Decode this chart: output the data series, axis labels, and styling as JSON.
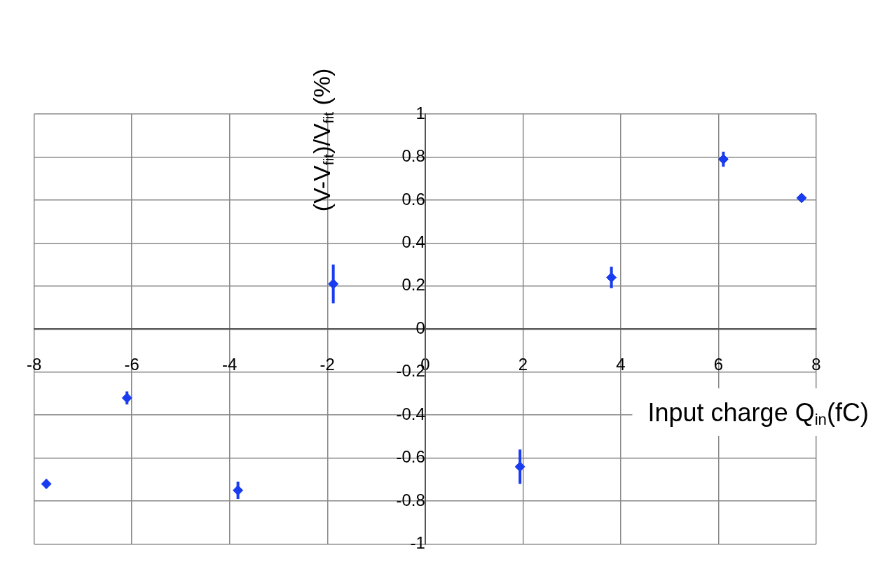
{
  "chart_data": {
    "type": "scatter",
    "xlabel": "Input charge Q$_{in}$(fC)",
    "ylabel": "(V-V$_{fit}$)/V$_{fit}$ (%)",
    "x": [
      -7.75,
      -6.1,
      -3.83,
      -1.88,
      1.94,
      3.81,
      6.1,
      7.7
    ],
    "values": [
      -0.72,
      -0.32,
      -0.75,
      0.21,
      -0.64,
      0.24,
      0.79,
      0.61
    ],
    "errors": [
      0.02,
      0.03,
      0.04,
      0.09,
      0.08,
      0.05,
      0.035,
      0.01
    ],
    "color": "#1a3cf0",
    "marker": "diamond",
    "grid": true,
    "xlim": [
      -8,
      8
    ],
    "xticks": [
      -8,
      -6,
      -4,
      -2,
      0,
      2,
      4,
      6,
      8
    ],
    "ylim": [
      -1,
      1
    ],
    "yticks": [
      -1,
      -0.8,
      -0.6,
      -0.4,
      -0.2,
      0,
      0.2,
      0.4,
      0.6,
      0.8,
      1
    ]
  }
}
